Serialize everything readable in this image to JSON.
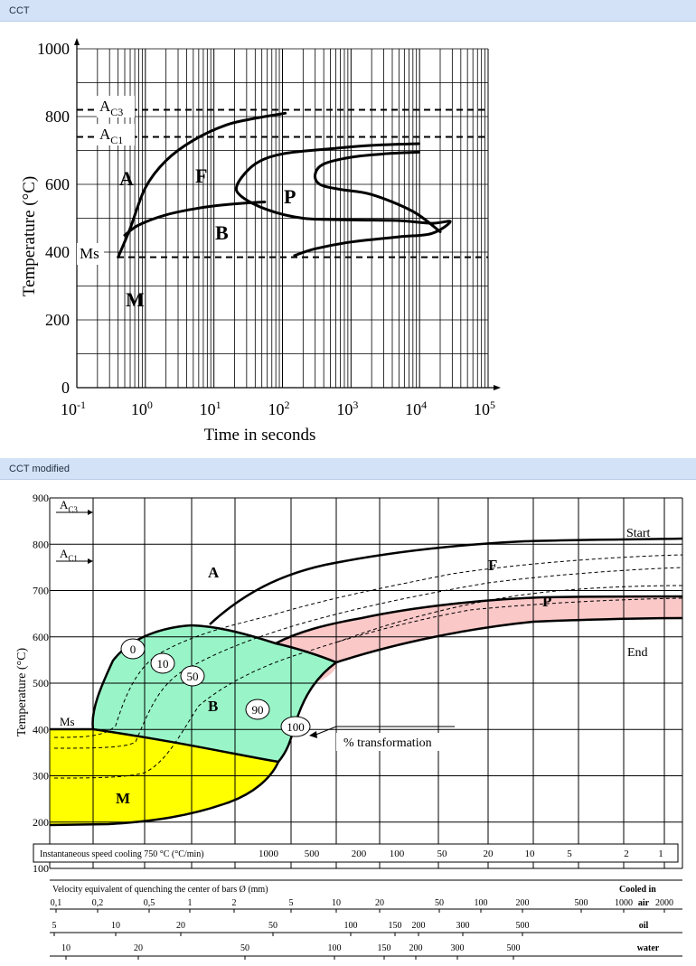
{
  "sections": [
    {
      "title": "CCT"
    },
    {
      "title": "CCT modified"
    }
  ],
  "chart_data": [
    {
      "type": "line",
      "title": "",
      "xlabel": "Time in seconds",
      "ylabel": "Temperature (°C)",
      "xscale": "log",
      "xlim": [
        0.1,
        100000
      ],
      "ylim": [
        0,
        1000
      ],
      "y_ticks": [
        "0",
        "200",
        "400",
        "600",
        "800",
        "1000"
      ],
      "x_ticks": [
        {
          "base": "10",
          "exp": "-1"
        },
        {
          "base": "10",
          "exp": "0"
        },
        {
          "base": "10",
          "exp": "1"
        },
        {
          "base": "10",
          "exp": "2"
        },
        {
          "base": "10",
          "exp": "3"
        },
        {
          "base": "10",
          "exp": "4"
        },
        {
          "base": "10",
          "exp": "5"
        }
      ],
      "reference_lines": [
        {
          "label": "A",
          "sub": "C3",
          "y": 820
        },
        {
          "label": "A",
          "sub": "C1",
          "y": 740
        },
        {
          "label": "Ms",
          "sub": "",
          "y": 385
        }
      ],
      "regions": [
        "A",
        "F",
        "P",
        "B",
        "M"
      ],
      "grid": true,
      "series": [
        {
          "x": [
            0.4,
            0.6,
            1.0,
            2.0,
            5.0,
            15,
            40,
            110
          ],
          "y": [
            385,
            470,
            590,
            670,
            730,
            775,
            795,
            810
          ]
        },
        {
          "x": [
            0.5,
            0.8,
            2.0,
            6.0,
            15,
            30,
            55
          ],
          "y": [
            450,
            480,
            510,
            530,
            540,
            545,
            548
          ]
        },
        {
          "x": [
            9800,
            2000,
            500,
            100,
            40,
            22,
            25,
            60,
            200,
            1000,
            5000,
            15000,
            28000,
            15000,
            5000,
            1000,
            300,
            150
          ],
          "y": [
            720,
            715,
            705,
            690,
            660,
            600,
            565,
            525,
            500,
            495,
            493,
            485,
            490,
            455,
            445,
            430,
            410,
            390
          ]
        },
        {
          "x": [
            9800,
            3000,
            1000,
            400,
            300,
            350,
            700,
            2000,
            8000,
            20000
          ],
          "y": [
            695,
            690,
            680,
            660,
            630,
            600,
            585,
            570,
            520,
            460
          ]
        }
      ]
    },
    {
      "type": "area",
      "title": "",
      "xlabel": "",
      "ylabel": "Temperature (°C)",
      "ylim": [
        100,
        900
      ],
      "y_ticks": [
        "900",
        "800",
        "700",
        "600",
        "500",
        "400",
        "300",
        "200",
        "100"
      ],
      "reference_lines": [
        {
          "label": "A",
          "sub": "C3",
          "y": 830
        },
        {
          "label": "A",
          "sub": "C1",
          "y": 725
        },
        {
          "label": "Ms",
          "sub": "",
          "y": 400
        }
      ],
      "regions": [
        {
          "label": "A",
          "color": "#ffffff"
        },
        {
          "label": "F",
          "color": "#ffffff"
        },
        {
          "label": "P",
          "color": "#fbc8c8"
        },
        {
          "label": "B",
          "color": "#99f5c8"
        },
        {
          "label": "M",
          "color": "#ffff00"
        }
      ],
      "curve_labels": [
        "Start",
        "End"
      ],
      "transformation_percent": [
        "0",
        "10",
        "50",
        "90",
        "100"
      ],
      "transformation_label": "% transformation",
      "scales": [
        {
          "title": "Instantaneous speed cooling 750 °C  (°C/min)",
          "ticks": [
            "1000",
            "500",
            "200",
            "100",
            "50",
            "20",
            "10",
            "5",
            "2",
            "1"
          ]
        },
        {
          "title": "Velocity equivalent of quenching the center of bars Ø (mm)",
          "right_title": "Cooled in",
          "medium": "air",
          "ticks": [
            "0,1",
            "0,2",
            "0,5",
            "1",
            "2",
            "5",
            "10",
            "20",
            "50",
            "100",
            "200",
            "500",
            "1000",
            "2000"
          ]
        },
        {
          "title": "",
          "medium": "oil",
          "ticks": [
            "5",
            "10",
            "20",
            "50",
            "100",
            "150",
            "200",
            "300",
            "500"
          ]
        },
        {
          "title": "",
          "medium": "water",
          "ticks": [
            "10",
            "20",
            "50",
            "100",
            "150",
            "200",
            "300",
            "500"
          ]
        }
      ],
      "grid": true
    }
  ]
}
